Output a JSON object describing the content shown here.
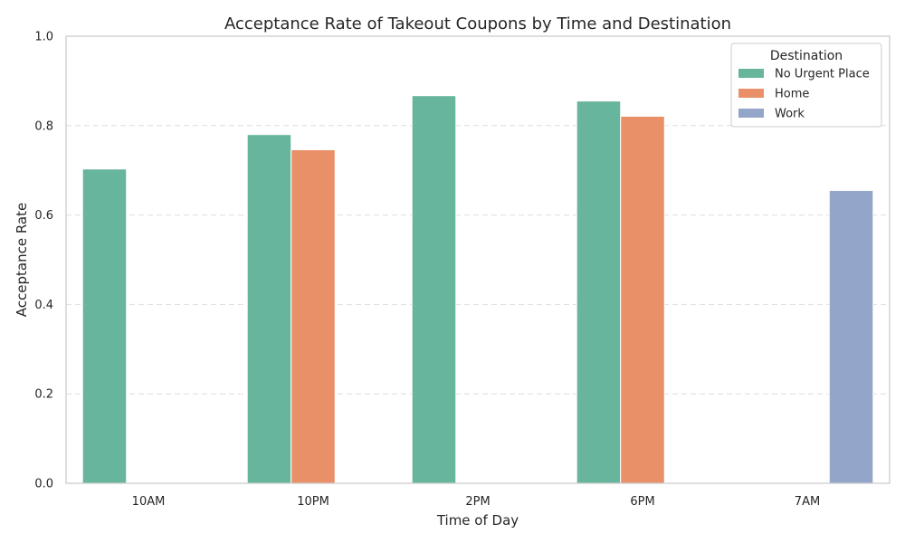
{
  "chart_data": {
    "type": "bar",
    "title": "Acceptance Rate of Takeout Coupons by Time and Destination",
    "xlabel": "Time of Day",
    "ylabel": "Acceptance Rate",
    "ylim": [
      0,
      1
    ],
    "yticks": [
      0.0,
      0.2,
      0.4,
      0.6,
      0.8,
      1.0
    ],
    "ytick_labels": [
      "0.0",
      "0.2",
      "0.4",
      "0.6",
      "0.8",
      "1.0"
    ],
    "categories": [
      "10AM",
      "10PM",
      "2PM",
      "6PM",
      "7AM"
    ],
    "grid": "horizontal-dashed",
    "legend": {
      "title": "Destination",
      "placement": "top-right"
    },
    "series": [
      {
        "name": "No Urgent Place",
        "color": "#66b59c",
        "values": [
          0.703,
          0.78,
          0.867,
          0.855,
          null
        ]
      },
      {
        "name": "Home",
        "color": "#ea9068",
        "values": [
          null,
          0.746,
          null,
          0.821,
          null
        ]
      },
      {
        "name": "Work",
        "color": "#93a5c8",
        "values": [
          null,
          null,
          null,
          null,
          0.655
        ]
      }
    ]
  }
}
